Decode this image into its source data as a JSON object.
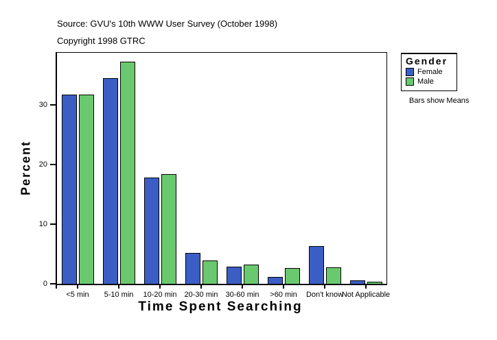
{
  "header": {
    "source": "Source: GVU's 10th WWW User Survey (October 1998)",
    "copyright": "Copyright 1998 GTRC"
  },
  "chart_data": {
    "type": "bar",
    "categories": [
      "<5 min",
      "5-10 min",
      "10-20 min",
      "20-30 min",
      "30-60 min",
      ">60 min",
      "Don't know",
      "Not Applicable"
    ],
    "series": [
      {
        "name": "Female",
        "color": "#3b5ec5",
        "values": [
          31.7,
          34.5,
          17.8,
          5.2,
          2.9,
          1.1,
          6.3,
          0.6
        ]
      },
      {
        "name": "Male",
        "color": "#6ac96e",
        "values": [
          31.7,
          37.2,
          18.4,
          3.9,
          3.2,
          2.6,
          2.7,
          0.3
        ]
      }
    ],
    "title": "",
    "xlabel": "Time Spent Searching",
    "ylabel": "Percent",
    "ylim": [
      0,
      38.7
    ],
    "yticks": [
      0,
      10,
      20,
      30
    ],
    "grid": false,
    "legend_position": "right",
    "legend_title": "Gender",
    "note": "Bars show Means",
    "bar_border_color": "#000000",
    "frame_color": "#000000"
  }
}
